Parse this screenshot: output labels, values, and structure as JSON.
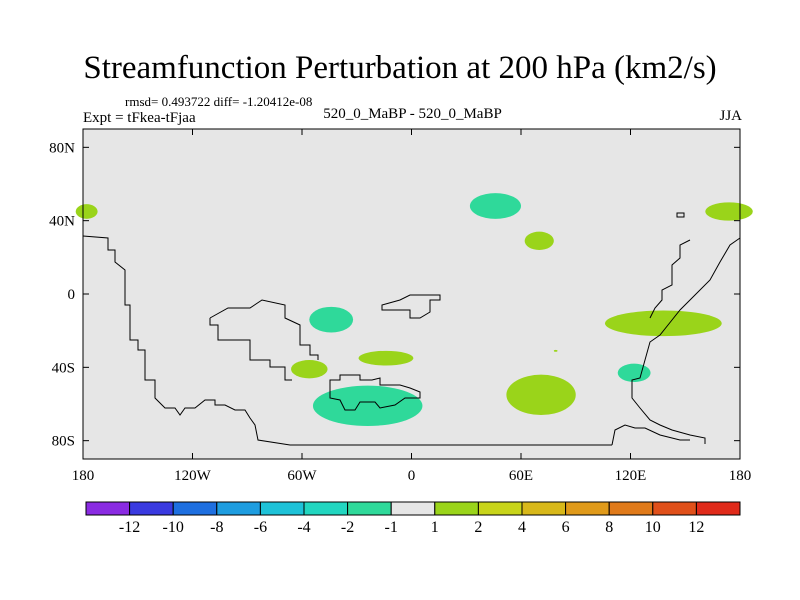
{
  "chart_data": {
    "type": "contour-map",
    "title": "Streamfunction Perturbation at 200 hPa (km2/s)",
    "stats_line": "rmsd= 0.493722 diff= -1.20412e-08",
    "left_label": "Expt = tFkea-tFjaa",
    "center_label": "520_0_MaBP - 520_0_MaBP",
    "right_label": "JJA",
    "lon_range": [
      -180,
      180
    ],
    "lat_range": [
      -90,
      90
    ],
    "x_ticks": [
      {
        "value": -180,
        "label": "180"
      },
      {
        "value": -120,
        "label": "120W"
      },
      {
        "value": -60,
        "label": "60W"
      },
      {
        "value": 0,
        "label": "0"
      },
      {
        "value": 60,
        "label": "60E"
      },
      {
        "value": 120,
        "label": "120E"
      },
      {
        "value": 180,
        "label": "180"
      }
    ],
    "y_ticks": [
      {
        "value": 80,
        "label": "80N"
      },
      {
        "value": 40,
        "label": "40N"
      },
      {
        "value": 0,
        "label": "0"
      },
      {
        "value": -40,
        "label": "40S"
      },
      {
        "value": -80,
        "label": "80S"
      }
    ],
    "colorbar": {
      "colors": [
        "#8a2be2",
        "#3a3ae0",
        "#1e6fe0",
        "#1e9de0",
        "#1ec2d8",
        "#22d6c0",
        "#2fd99a",
        "#e6e6e6",
        "#9ad41a",
        "#c8d41a",
        "#d8b81a",
        "#e09a1a",
        "#e07a1a",
        "#e0501a",
        "#e02a1a"
      ],
      "labels": [
        "-12",
        "-10",
        "-8",
        "-6",
        "-4",
        "-2",
        "-1",
        "1",
        "2",
        "4",
        "6",
        "8",
        "10",
        "12"
      ]
    },
    "background_color": "#e6e6e6",
    "contour_regions": [
      {
        "level": "1 to 2",
        "color": "#9ad41a",
        "center": [
          -178,
          45
        ],
        "size": [
          6,
          4
        ]
      },
      {
        "level": "-2 to -1",
        "color": "#2fd99a",
        "center": [
          46,
          48
        ],
        "size": [
          14,
          7
        ]
      },
      {
        "level": "1 to 2",
        "color": "#9ad41a",
        "center": [
          70,
          29
        ],
        "size": [
          8,
          5
        ]
      },
      {
        "level": "1 to 2",
        "color": "#9ad41a",
        "center": [
          174,
          45
        ],
        "size": [
          13,
          5
        ]
      },
      {
        "level": "-2 to -1",
        "color": "#2fd99a",
        "center": [
          -44,
          -14
        ],
        "size": [
          12,
          7
        ]
      },
      {
        "level": "1 to 2",
        "color": "#9ad41a",
        "center": [
          138,
          -16
        ],
        "size": [
          32,
          7
        ]
      },
      {
        "level": "1 to 2",
        "color": "#9ad41a",
        "center": [
          -14,
          -35
        ],
        "size": [
          15,
          4
        ]
      },
      {
        "level": "1 to 2",
        "color": "#9ad41a",
        "center": [
          -56,
          -41
        ],
        "size": [
          10,
          5
        ]
      },
      {
        "level": "-2 to -1",
        "color": "#2fd99a",
        "center": [
          122,
          -43
        ],
        "size": [
          9,
          5
        ]
      },
      {
        "level": "1 to 2",
        "color": "#9ad41a",
        "center": [
          71,
          -55
        ],
        "size": [
          19,
          11
        ]
      },
      {
        "level": "-2 to -1",
        "color": "#2fd99a",
        "center": [
          -24,
          -61
        ],
        "size": [
          30,
          11
        ]
      },
      {
        "level": "1 to 2",
        "color": "#9ad41a",
        "center": [
          79,
          -31
        ],
        "size": [
          1,
          0.5
        ]
      }
    ]
  }
}
